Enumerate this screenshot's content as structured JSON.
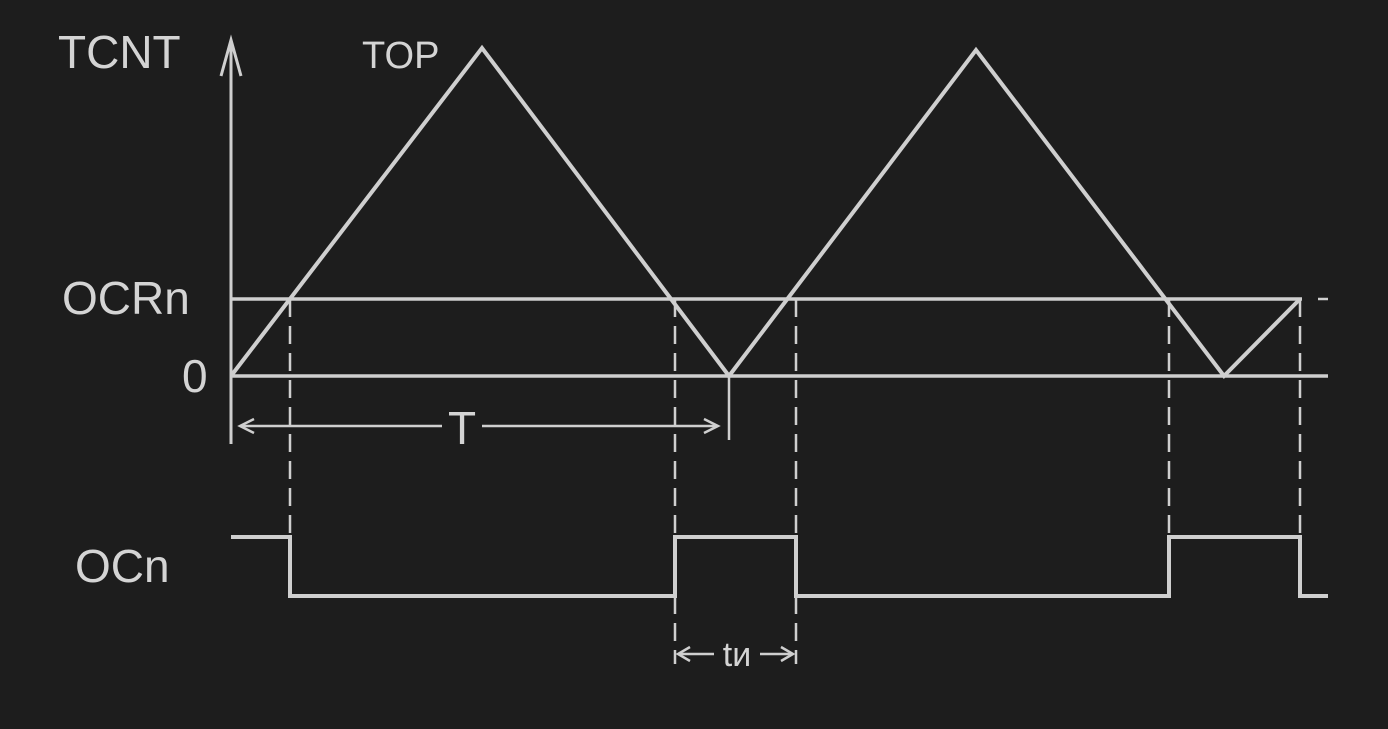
{
  "labels": {
    "y_axis": "TCNT",
    "top": "TOP",
    "compare_level": "OCRn",
    "zero": "0",
    "period": "T",
    "output": "OCn",
    "pulse_width": "tи"
  },
  "colors": {
    "background": "#1d1d1d",
    "lines": "#cfcfcf"
  }
}
